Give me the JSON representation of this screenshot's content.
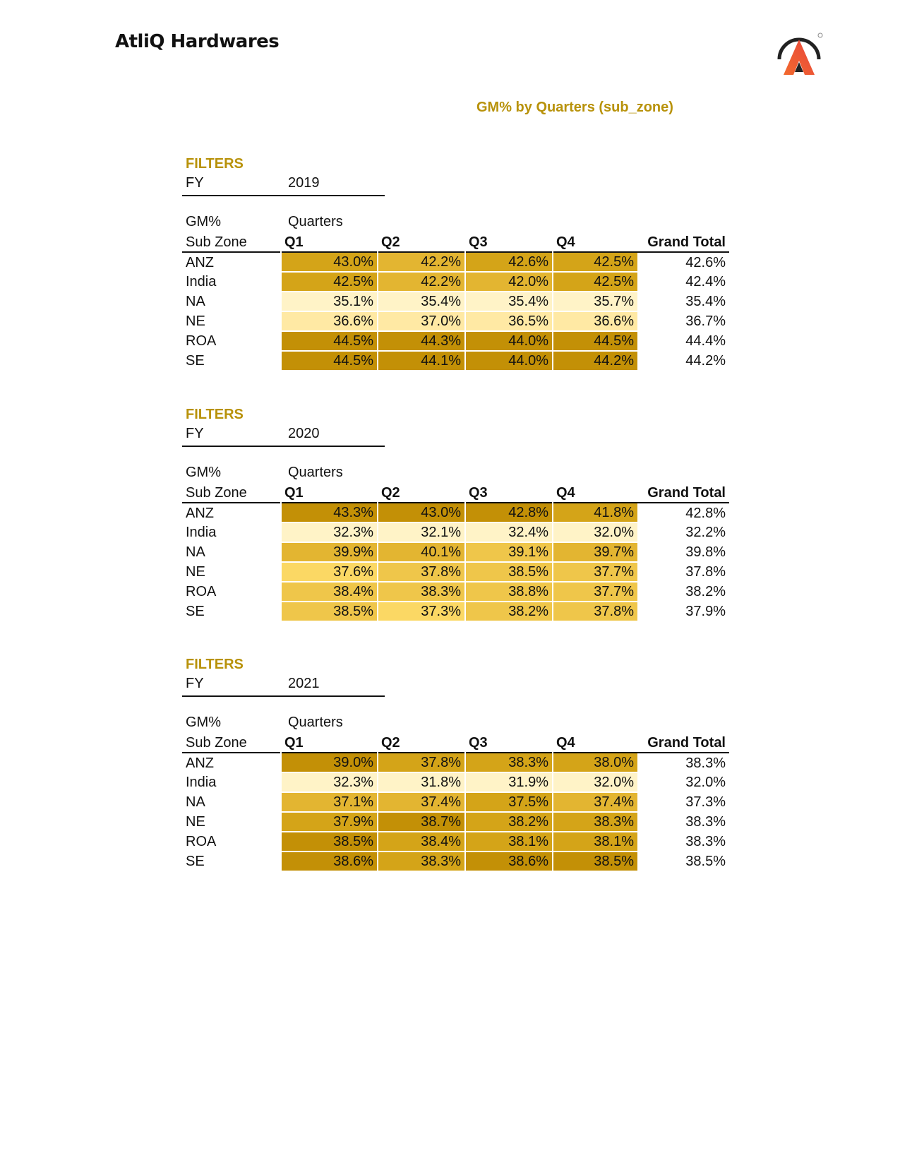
{
  "header": {
    "company": "AtliQ Hardwares",
    "report_title": "GM% by Quarters (sub_zone)",
    "logo_icon": "atliq-logo",
    "accent_color": "#b8920a"
  },
  "sections": [
    {
      "filters_label": "FILTERS",
      "filter_name": "FY",
      "filter_value": "2019",
      "measure_label": "GM%",
      "column_title": "Quarters",
      "row_header": "Sub Zone",
      "columns": [
        "Q1",
        "Q2",
        "Q3",
        "Q4"
      ],
      "grand_total_label": "Grand Total",
      "rows": [
        {
          "label": "ANZ",
          "values": [
            "43.0%",
            "42.2%",
            "42.6%",
            "42.5%"
          ],
          "total": "42.6%"
        },
        {
          "label": "India",
          "values": [
            "42.5%",
            "42.2%",
            "42.0%",
            "42.5%"
          ],
          "total": "42.4%"
        },
        {
          "label": "NA",
          "values": [
            "35.1%",
            "35.4%",
            "35.4%",
            "35.7%"
          ],
          "total": "35.4%"
        },
        {
          "label": "NE",
          "values": [
            "36.6%",
            "37.0%",
            "36.5%",
            "36.6%"
          ],
          "total": "36.7%"
        },
        {
          "label": "ROA",
          "values": [
            "44.5%",
            "44.3%",
            "44.0%",
            "44.5%"
          ],
          "total": "44.4%"
        },
        {
          "label": "SE",
          "values": [
            "44.5%",
            "44.1%",
            "44.0%",
            "44.2%"
          ],
          "total": "44.2%"
        }
      ]
    },
    {
      "filters_label": "FILTERS",
      "filter_name": "FY",
      "filter_value": "2020",
      "measure_label": "GM%",
      "column_title": "Quarters",
      "row_header": "Sub Zone",
      "columns": [
        "Q1",
        "Q2",
        "Q3",
        "Q4"
      ],
      "grand_total_label": "Grand Total",
      "rows": [
        {
          "label": "ANZ",
          "values": [
            "43.3%",
            "43.0%",
            "42.8%",
            "41.8%"
          ],
          "total": "42.8%"
        },
        {
          "label": "India",
          "values": [
            "32.3%",
            "32.1%",
            "32.4%",
            "32.0%"
          ],
          "total": "32.2%"
        },
        {
          "label": "NA",
          "values": [
            "39.9%",
            "40.1%",
            "39.1%",
            "39.7%"
          ],
          "total": "39.8%"
        },
        {
          "label": "NE",
          "values": [
            "37.6%",
            "37.8%",
            "38.5%",
            "37.7%"
          ],
          "total": "37.8%"
        },
        {
          "label": "ROA",
          "values": [
            "38.4%",
            "38.3%",
            "38.8%",
            "37.7%"
          ],
          "total": "38.2%"
        },
        {
          "label": "SE",
          "values": [
            "38.5%",
            "37.3%",
            "38.2%",
            "37.8%"
          ],
          "total": "37.9%"
        }
      ]
    },
    {
      "filters_label": "FILTERS",
      "filter_name": "FY",
      "filter_value": "2021",
      "measure_label": "GM%",
      "column_title": "Quarters",
      "row_header": "Sub Zone",
      "columns": [
        "Q1",
        "Q2",
        "Q3",
        "Q4"
      ],
      "grand_total_label": "Grand Total",
      "rows": [
        {
          "label": "ANZ",
          "values": [
            "39.0%",
            "37.8%",
            "38.3%",
            "38.0%"
          ],
          "total": "38.3%"
        },
        {
          "label": "India",
          "values": [
            "32.3%",
            "31.8%",
            "31.9%",
            "32.0%"
          ],
          "total": "32.0%"
        },
        {
          "label": "NA",
          "values": [
            "37.1%",
            "37.4%",
            "37.5%",
            "37.4%"
          ],
          "total": "37.3%"
        },
        {
          "label": "NE",
          "values": [
            "37.9%",
            "38.7%",
            "38.2%",
            "38.3%"
          ],
          "total": "38.3%"
        },
        {
          "label": "ROA",
          "values": [
            "38.5%",
            "38.4%",
            "38.1%",
            "38.1%"
          ],
          "total": "38.3%"
        },
        {
          "label": "SE",
          "values": [
            "38.6%",
            "38.3%",
            "38.6%",
            "38.5%"
          ],
          "total": "38.5%"
        }
      ]
    }
  ]
}
